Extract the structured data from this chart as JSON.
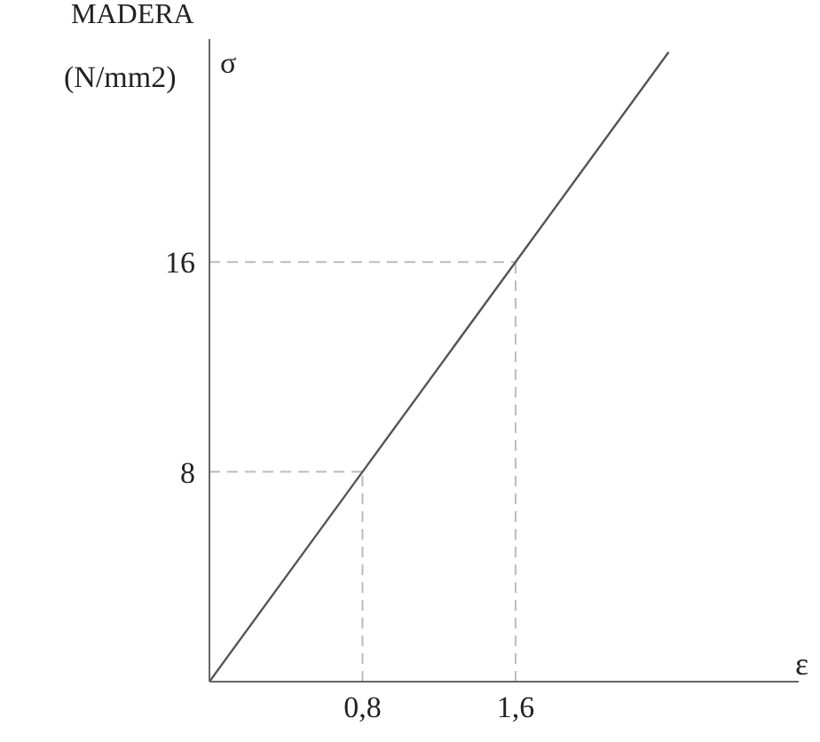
{
  "chart_data": {
    "type": "line",
    "title": "MADERA",
    "ylabel": "σ",
    "xlabel": "ε",
    "annotations": [
      "(N/mm2)"
    ],
    "x": [
      0,
      0.8,
      1.6,
      2.4
    ],
    "series": [
      {
        "color": "#555555",
        "values": [
          0,
          8,
          16,
          24
        ]
      }
    ],
    "xlim": [
      0,
      3.08
    ],
    "ylim": [
      0,
      24.5
    ],
    "xticks": [
      {
        "value": 0.8,
        "label": "0,8"
      },
      {
        "value": 1.6,
        "label": "1,6"
      }
    ],
    "yticks": [
      8,
      16
    ],
    "ref_lines": [
      {
        "axis": "x",
        "value": 0.8,
        "color": "#bbbbbb",
        "line_style": "dashed"
      },
      {
        "axis": "x",
        "value": 1.6,
        "color": "#bbbbbb",
        "line_style": "dashed"
      },
      {
        "axis": "y",
        "value": 8,
        "color": "#bbbbbb",
        "line_style": "dashed"
      },
      {
        "axis": "y",
        "value": 16,
        "color": "#bbbbbb",
        "line_style": "dashed"
      }
    ],
    "grid": false,
    "legend": false,
    "marker": "none",
    "line_style": "solid"
  }
}
